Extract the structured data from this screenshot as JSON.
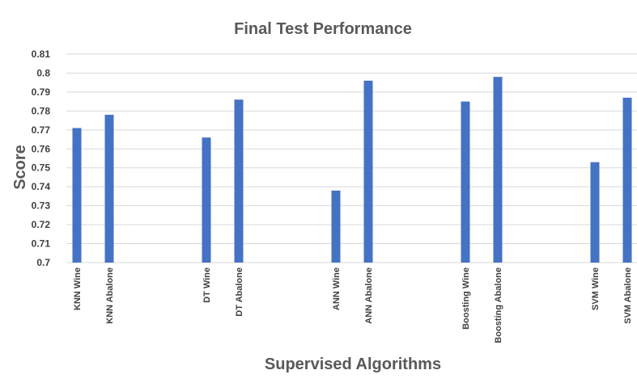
{
  "chart_data": {
    "type": "bar",
    "title": "Final Test Performance",
    "xlabel": "Supervised Algorithms",
    "ylabel": "Score",
    "ylim": [
      0.7,
      0.81
    ],
    "yticks": [
      "0.7",
      "0.71",
      "0.72",
      "0.73",
      "0.74",
      "0.75",
      "0.76",
      "0.77",
      "0.78",
      "0.79",
      "0.8",
      "0.81"
    ],
    "grid": true,
    "legend": "none",
    "color": "#4472c4",
    "categories": [
      "KNN Wine",
      "KNN Abalone",
      "",
      "",
      "DT Wine",
      "DT Abalone",
      "",
      "",
      "ANN Wine",
      "ANN Abalone",
      "",
      "",
      "Boosting Wine",
      "Boosting Abalone",
      "",
      "",
      "SVM Wine",
      "SVM Abalone"
    ],
    "values": [
      0.771,
      0.778,
      null,
      null,
      0.766,
      0.786,
      null,
      null,
      0.738,
      0.796,
      null,
      null,
      0.785,
      0.798,
      null,
      null,
      0.753,
      0.787
    ]
  }
}
